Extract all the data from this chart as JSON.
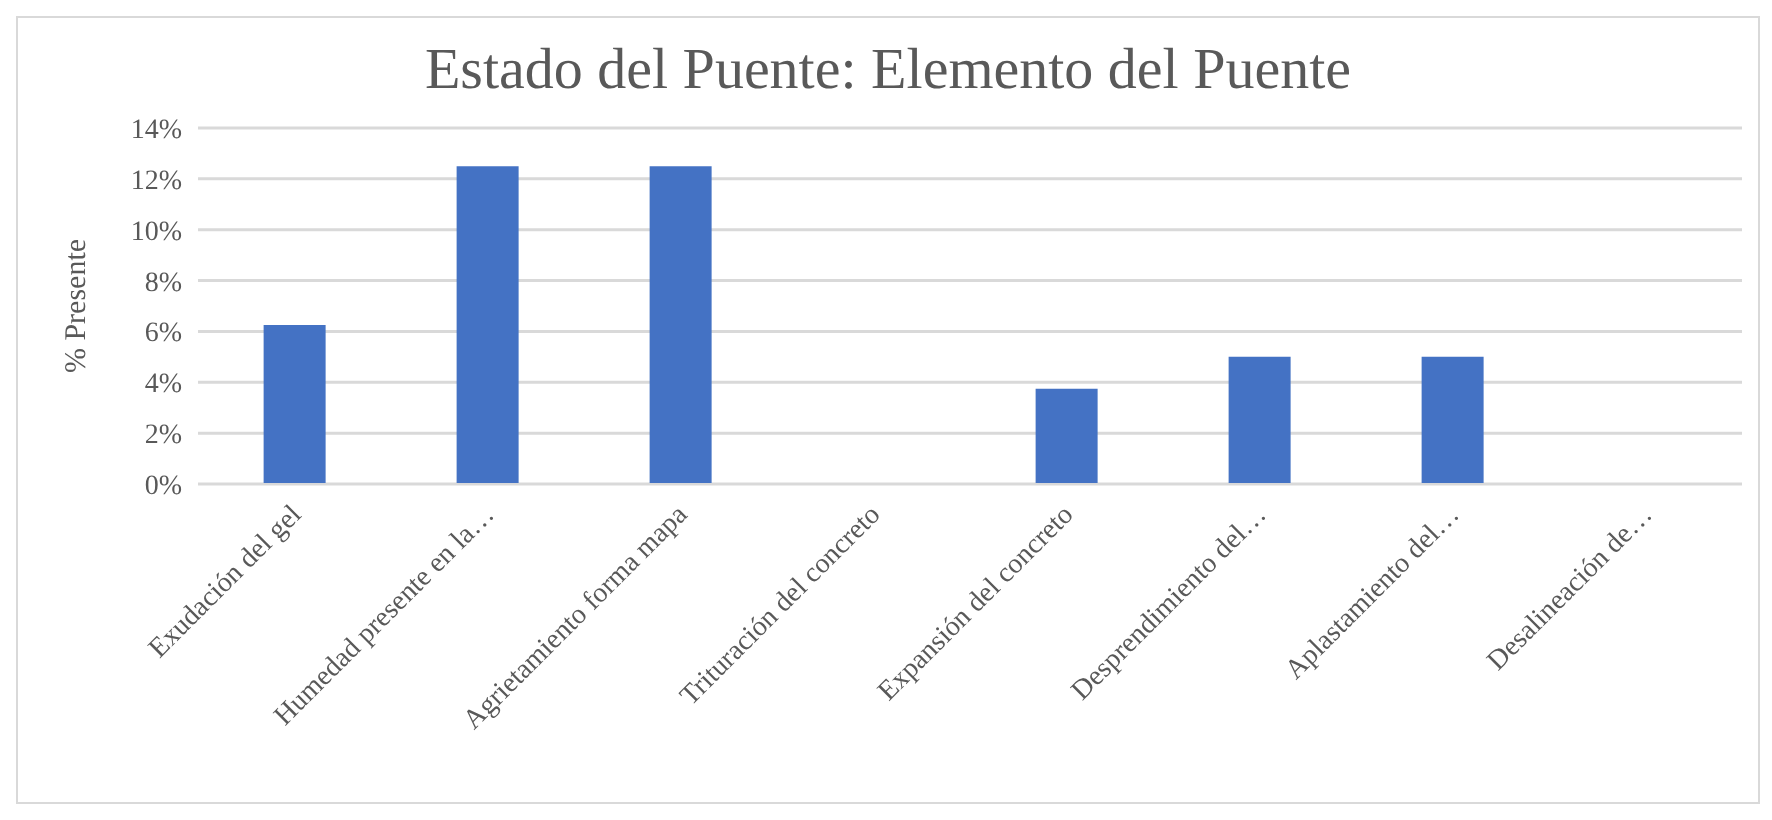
{
  "chart_data": {
    "type": "bar",
    "title": "Estado del Puente:  Elemento del Puente",
    "ylabel": "% Presente",
    "categories": [
      "Exudación del gel",
      "Humedad presente en la…",
      "Agrietamiento forma mapa",
      "Trituración del concreto",
      "Expansión del concreto",
      "Desprendimiento del…",
      "Aplastamiento del…",
      "Desalineación de…"
    ],
    "values": [
      6.25,
      12.5,
      12.5,
      0,
      3.75,
      5,
      5,
      0
    ],
    "color": "#4472c4",
    "ylim": [
      0,
      14
    ],
    "yticks": [
      {
        "value": 0,
        "label": "0%"
      },
      {
        "value": 2,
        "label": "2%"
      },
      {
        "value": 4,
        "label": "4%"
      },
      {
        "value": 6,
        "label": "6%"
      },
      {
        "value": 8,
        "label": "8%"
      },
      {
        "value": 10,
        "label": "10%"
      },
      {
        "value": 12,
        "label": "12%"
      },
      {
        "value": 14,
        "label": "14%"
      }
    ],
    "grid": "y",
    "legend": false
  }
}
